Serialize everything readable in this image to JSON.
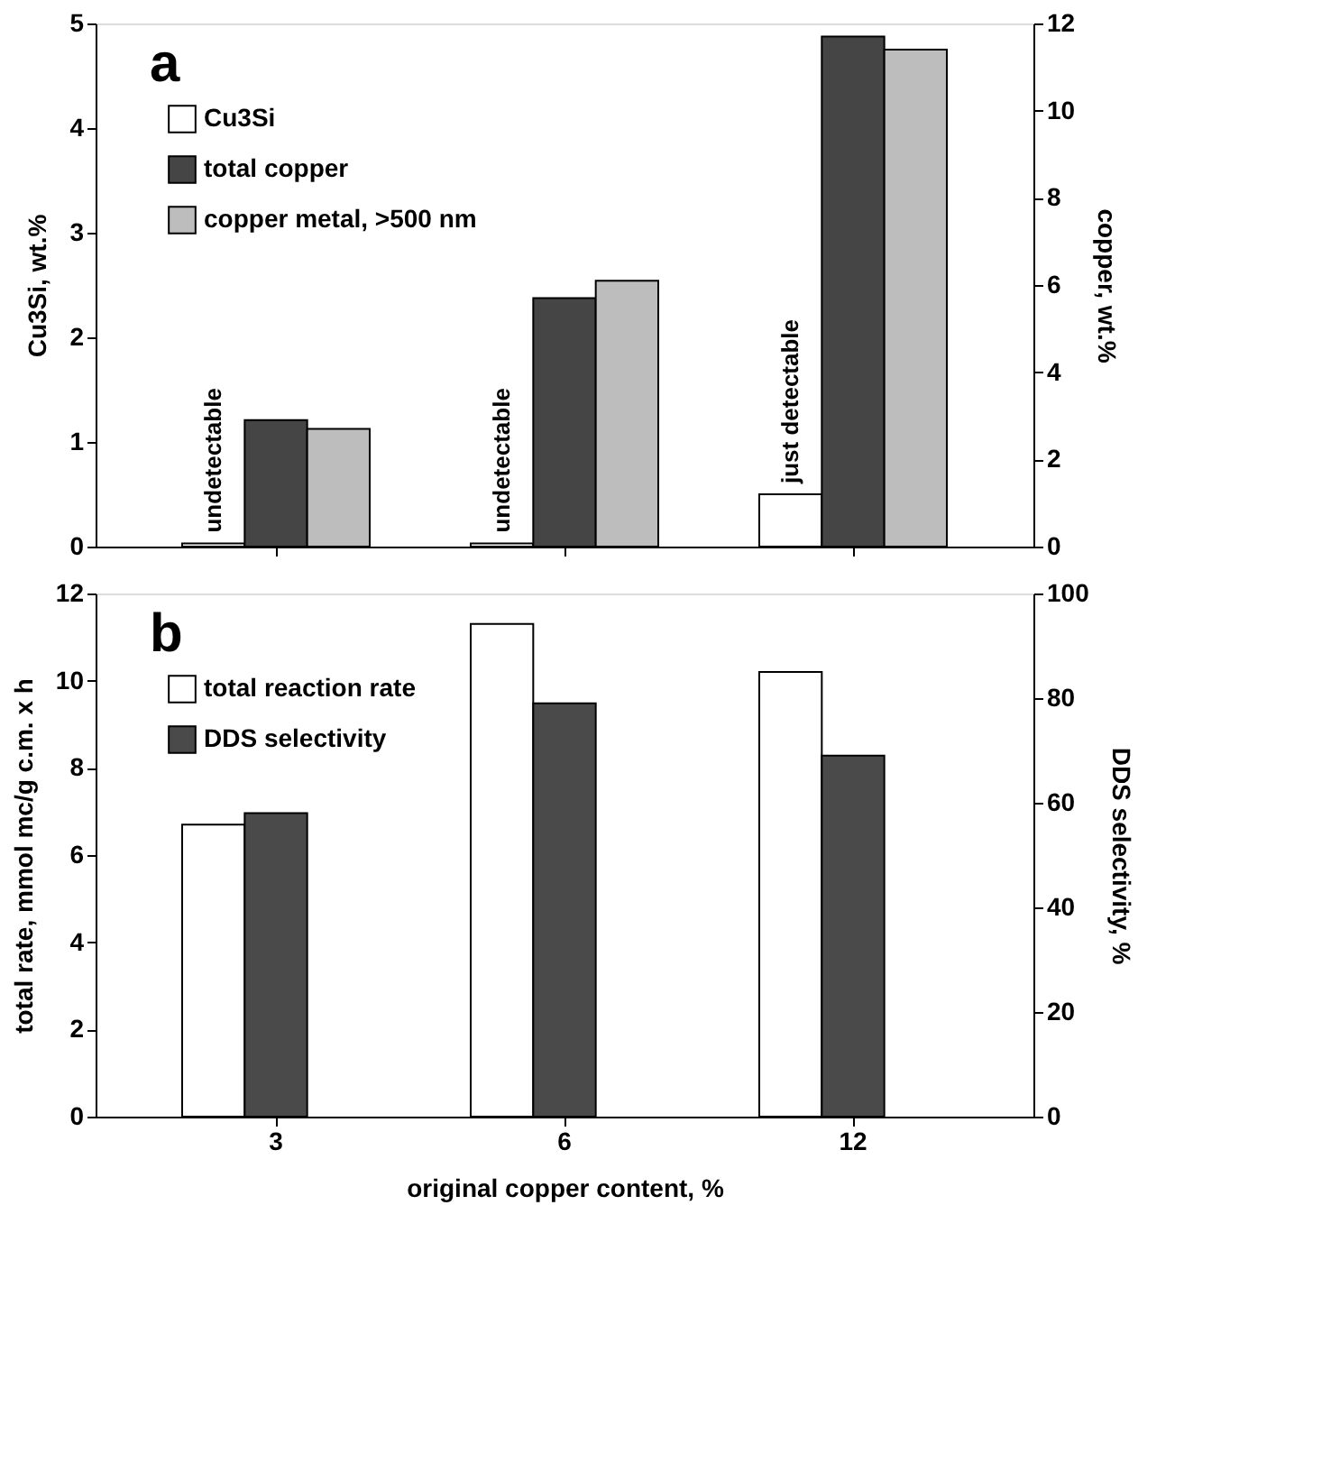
{
  "chart_data": [
    {
      "type": "bar",
      "categories": [
        "3",
        "6",
        "12"
      ],
      "ylabel": "Cu3Si, wt.%",
      "y2label": "copper, wt.%",
      "ylim": [
        0,
        5
      ],
      "yticks": [
        0,
        1,
        2,
        3,
        4,
        5
      ],
      "y2lim": [
        0,
        12
      ],
      "y2ticks": [
        0,
        2,
        4,
        6,
        8,
        10,
        12
      ],
      "tick_labels": "y",
      "legend": "top left",
      "grid": false,
      "series": [
        {
          "name": "Cu3Si",
          "color": "#ffffff",
          "values": [
            0.03,
            0.03,
            0.5
          ]
        },
        {
          "name": "total copper",
          "color": "#454545",
          "values": [
            2.9,
            5.7,
            11.7
          ],
          "axis": "y2"
        },
        {
          "name": "copper metal, >500 nm",
          "color": "#bdbdbd",
          "values": [
            2.7,
            6.1,
            11.4
          ],
          "axis": "y2"
        }
      ],
      "annotations": [
        "a",
        "undetectable",
        "undetectable",
        "just detectable"
      ]
    },
    {
      "type": "bar",
      "categories": [
        "3",
        "6",
        "12"
      ],
      "xlabel": "original copper content, %",
      "ylabel": "total rate, mmol mc/g c.m. x h",
      "y2label": "DDS selectivity, %",
      "ylim": [
        0,
        12
      ],
      "yticks": [
        0,
        2,
        4,
        6,
        8,
        10,
        12
      ],
      "y2lim": [
        0,
        100
      ],
      "y2ticks": [
        0,
        20,
        40,
        60,
        80,
        100
      ],
      "legend": "top left",
      "grid": false,
      "series": [
        {
          "name": "total reaction rate",
          "color": "#ffffff",
          "values": [
            6.7,
            11.3,
            10.2
          ]
        },
        {
          "name": "DDS selectivity",
          "color": "#4a4a4a",
          "values": [
            58,
            79,
            69
          ],
          "axis": "y2"
        }
      ],
      "annotations": [
        "b"
      ]
    }
  ]
}
